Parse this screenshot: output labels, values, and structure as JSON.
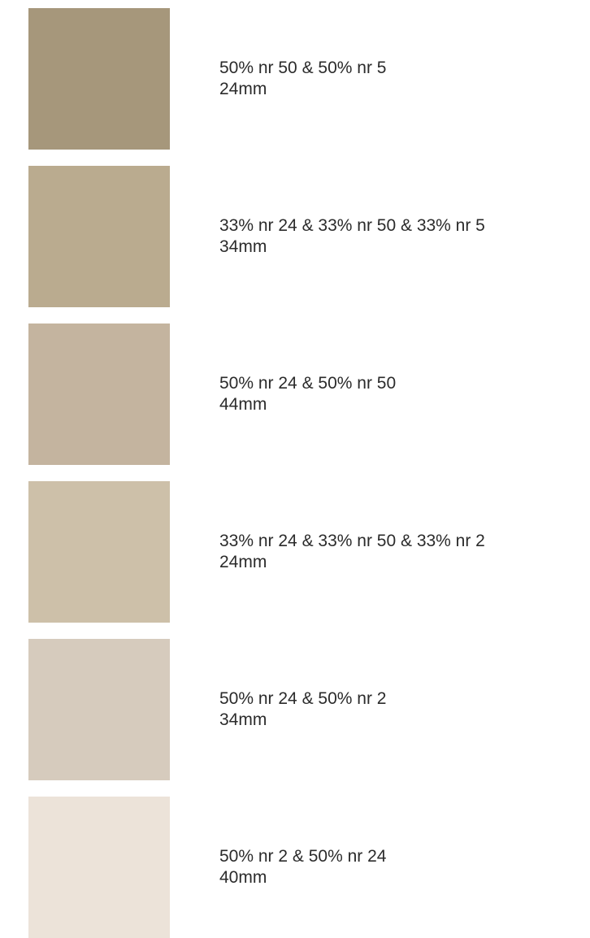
{
  "swatches": [
    {
      "color": "#a6977b",
      "mix": "50% nr 50 & 50% nr 5",
      "size": "24mm"
    },
    {
      "color": "#baab8f",
      "mix": "33% nr 24 & 33% nr 50 & 33% nr 5",
      "size": "34mm"
    },
    {
      "color": "#c4b49f",
      "mix": "50% nr 24 & 50% nr 50",
      "size": "44mm"
    },
    {
      "color": "#cdc0a9",
      "mix": "33% nr 24 & 33% nr 50 & 33% nr 2",
      "size": "24mm"
    },
    {
      "color": "#d6cbbd",
      "mix": "50% nr 24 & 50% nr 2",
      "size": "34mm"
    },
    {
      "color": "#ece3d9",
      "mix": "50% nr 2 & 50% nr 24",
      "size": "40mm"
    }
  ]
}
